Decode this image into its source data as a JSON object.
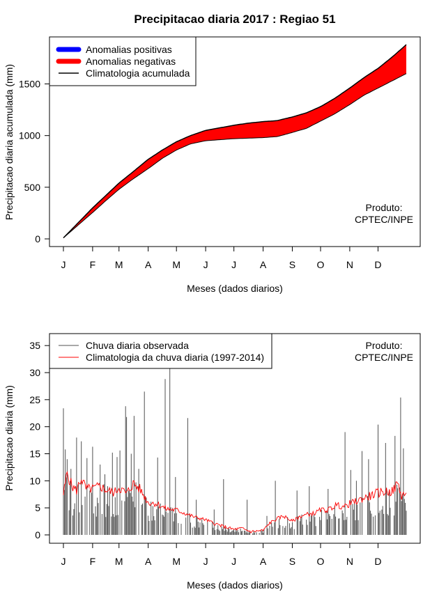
{
  "title": "Precipitacao diaria 2017 : Regiao 51",
  "chart_data": [
    {
      "type": "area",
      "ylabel": "Precipitacao diaria acumulada (mm)",
      "xlabel": "Meses (dados diarios)",
      "ylim": [
        0,
        1900
      ],
      "yticks": [
        0,
        500,
        1000,
        1500
      ],
      "month_ticks": [
        "J",
        "F",
        "M",
        "A",
        "M",
        "J",
        "J",
        "A",
        "S",
        "O",
        "N",
        "D"
      ],
      "month_start_days": [
        1,
        32,
        60,
        91,
        121,
        152,
        182,
        213,
        244,
        274,
        305,
        335
      ],
      "legend": [
        {
          "label": "Anomalias positivas",
          "color": "#0000ff"
        },
        {
          "label": "Anomalias negativas",
          "color": "#ff0000"
        },
        {
          "label": "Climatologia acumulada",
          "color": "#000000"
        }
      ],
      "credit": [
        "Produto:",
        "CPTEC/INPE"
      ],
      "climatology_cumulative": {
        "days": [
          1,
          15,
          32,
          46,
          60,
          75,
          91,
          106,
          121,
          136,
          152,
          167,
          182,
          197,
          213,
          228,
          244,
          259,
          274,
          289,
          305,
          320,
          335,
          350,
          365
        ],
        "values": [
          10,
          140,
          300,
          420,
          540,
          650,
          770,
          860,
          940,
          1000,
          1050,
          1075,
          1100,
          1120,
          1135,
          1145,
          1180,
          1220,
          1280,
          1360,
          1460,
          1560,
          1650,
          1760,
          1880
        ]
      },
      "observed_cumulative": {
        "days": [
          1,
          15,
          32,
          46,
          60,
          75,
          91,
          106,
          121,
          136,
          152,
          167,
          182,
          197,
          213,
          228,
          244,
          259,
          274,
          289,
          305,
          320,
          335,
          350,
          365
        ],
        "values": [
          10,
          120,
          255,
          370,
          480,
          580,
          680,
          780,
          860,
          920,
          950,
          960,
          970,
          975,
          980,
          990,
          1030,
          1070,
          1140,
          1210,
          1300,
          1390,
          1460,
          1530,
          1600
        ]
      }
    },
    {
      "type": "bar",
      "ylabel": "Precipitacao diaria (mm)",
      "xlabel": "Meses (dados diarios)",
      "ylim": [
        0,
        37
      ],
      "yticks": [
        0,
        5,
        10,
        15,
        20,
        25,
        30,
        35
      ],
      "month_ticks": [
        "J",
        "F",
        "M",
        "A",
        "M",
        "J",
        "J",
        "A",
        "S",
        "O",
        "N",
        "D"
      ],
      "month_start_days": [
        1,
        32,
        60,
        91,
        121,
        152,
        182,
        213,
        244,
        274,
        305,
        335
      ],
      "legend": [
        {
          "label": "Chuva diaria observada",
          "color": "#505050"
        },
        {
          "label": "Climatologia da chuva diaria (1997-2014)",
          "color": "#ff0000"
        }
      ],
      "credit": [
        "Produto:",
        "CPTEC/INPE"
      ],
      "observed_daily_peaks": [
        {
          "day": 1,
          "value": 23.4
        },
        {
          "day": 3,
          "value": 15.8
        },
        {
          "day": 5,
          "value": 14.0
        },
        {
          "day": 9,
          "value": 12.2
        },
        {
          "day": 15,
          "value": 18.0
        },
        {
          "day": 20,
          "value": 17.3
        },
        {
          "day": 26,
          "value": 14.2
        },
        {
          "day": 32,
          "value": 16.3
        },
        {
          "day": 40,
          "value": 13.0
        },
        {
          "day": 45,
          "value": 11.2
        },
        {
          "day": 48,
          "value": 9.0
        },
        {
          "day": 53,
          "value": 15.2
        },
        {
          "day": 58,
          "value": 14.4
        },
        {
          "day": 61,
          "value": 15.6
        },
        {
          "day": 67,
          "value": 23.8
        },
        {
          "day": 68,
          "value": 21.8
        },
        {
          "day": 73,
          "value": 15.0
        },
        {
          "day": 76,
          "value": 22.0
        },
        {
          "day": 81,
          "value": 12.2
        },
        {
          "day": 87,
          "value": 26.5
        },
        {
          "day": 101,
          "value": 14.3
        },
        {
          "day": 109,
          "value": 28.8
        },
        {
          "day": 114,
          "value": 31.0
        },
        {
          "day": 120,
          "value": 10.7
        },
        {
          "day": 133,
          "value": 21.6
        },
        {
          "day": 142,
          "value": 6.5
        },
        {
          "day": 161,
          "value": 4.7
        },
        {
          "day": 171,
          "value": 10.3
        },
        {
          "day": 196,
          "value": 6.5
        },
        {
          "day": 217,
          "value": 3.5
        },
        {
          "day": 226,
          "value": 10.0
        },
        {
          "day": 249,
          "value": 8.2
        },
        {
          "day": 262,
          "value": 9.0
        },
        {
          "day": 282,
          "value": 8.5
        },
        {
          "day": 300,
          "value": 19.0
        },
        {
          "day": 306,
          "value": 12.0
        },
        {
          "day": 312,
          "value": 10.0
        },
        {
          "day": 318,
          "value": 15.5
        },
        {
          "day": 325,
          "value": 14.0
        },
        {
          "day": 335,
          "value": 20.4
        },
        {
          "day": 343,
          "value": 17.0
        },
        {
          "day": 353,
          "value": 18.3
        },
        {
          "day": 359,
          "value": 25.4
        },
        {
          "day": 362,
          "value": 16.0
        }
      ],
      "climatology_daily": {
        "days": [
          1,
          5,
          10,
          15,
          20,
          25,
          32,
          40,
          46,
          55,
          60,
          68,
          75,
          82,
          91,
          100,
          110,
          121,
          130,
          140,
          152,
          160,
          170,
          182,
          190,
          200,
          213,
          220,
          228,
          235,
          244,
          252,
          260,
          268,
          274,
          282,
          290,
          300,
          305,
          312,
          320,
          327,
          335,
          342,
          350,
          356,
          360,
          365
        ],
        "values": [
          7.5,
          11.5,
          9.0,
          8.2,
          10.5,
          8.5,
          8.5,
          9.0,
          8.3,
          7.8,
          8.8,
          7.6,
          9.5,
          8.5,
          6.0,
          5.8,
          4.8,
          4.6,
          4.0,
          3.3,
          2.8,
          2.2,
          1.6,
          1.0,
          1.2,
          0.6,
          0.8,
          2.2,
          3.0,
          3.5,
          2.5,
          3.4,
          3.8,
          4.0,
          4.6,
          4.6,
          5.5,
          5.2,
          5.8,
          6.2,
          6.8,
          7.2,
          7.8,
          8.0,
          8.0,
          9.5,
          7.2,
          7.8
        ]
      }
    }
  ]
}
